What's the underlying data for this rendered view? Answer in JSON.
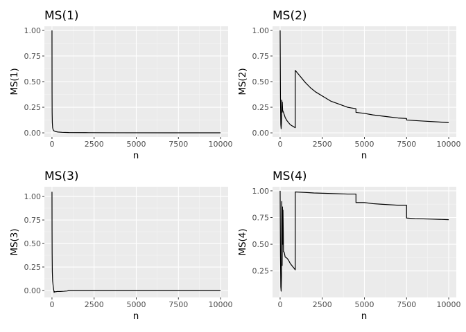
{
  "chart_data": [
    {
      "type": "line",
      "title": "MS(1)",
      "xlabel": "n",
      "ylabel": "MS(1)",
      "xlim": [
        0,
        10000
      ],
      "ylim": [
        0,
        1
      ],
      "x_ticks": [
        0,
        2500,
        5000,
        7500,
        10000
      ],
      "y_ticks": [
        0,
        0.25,
        0.5,
        0.75,
        1
      ],
      "y_tick_labels": [
        "0.00",
        "0.25",
        "0.50",
        "0.75",
        "1.00"
      ],
      "grid": true,
      "series": [
        {
          "x": [
            1,
            2,
            5,
            10,
            20,
            40,
            70,
            120,
            200,
            350,
            600,
            1000,
            2000,
            4000,
            7000,
            10000
          ],
          "y": [
            1.0,
            0.8,
            0.4,
            0.2,
            0.1,
            0.05,
            0.03,
            0.02,
            0.013,
            0.008,
            0.005,
            0.003,
            0.002,
            0.001,
            0.0007,
            0.0005
          ]
        }
      ]
    },
    {
      "type": "line",
      "title": "MS(2)",
      "xlabel": "n",
      "ylabel": "MS(2)",
      "xlim": [
        0,
        10000
      ],
      "ylim": [
        0,
        1
      ],
      "x_ticks": [
        0,
        2500,
        5000,
        7500,
        10000
      ],
      "y_ticks": [
        0,
        0.25,
        0.5,
        0.75,
        1
      ],
      "y_tick_labels": [
        "0.00",
        "0.25",
        "0.50",
        "0.75",
        "1.00"
      ],
      "grid": true,
      "series": [
        {
          "x": [
            1,
            20,
            40,
            60,
            80,
            100,
            120,
            130,
            150,
            200,
            300,
            400,
            500,
            600,
            700,
            800,
            899,
            900,
            1100,
            1300,
            1500,
            1800,
            2100,
            2500,
            3000,
            3500,
            4000,
            4499,
            4500,
            5000,
            5500,
            6000,
            6500,
            7000,
            7499,
            7500,
            8000,
            8500,
            9000,
            9500,
            10000
          ],
          "y": [
            1.0,
            0.35,
            0.08,
            0.04,
            0.1,
            0.32,
            0.2,
            0.3,
            0.22,
            0.2,
            0.15,
            0.12,
            0.1,
            0.08,
            0.07,
            0.06,
            0.05,
            0.61,
            0.57,
            0.53,
            0.49,
            0.44,
            0.4,
            0.36,
            0.31,
            0.28,
            0.25,
            0.235,
            0.2,
            0.19,
            0.175,
            0.165,
            0.155,
            0.145,
            0.14,
            0.125,
            0.12,
            0.115,
            0.11,
            0.105,
            0.1
          ]
        }
      ]
    },
    {
      "type": "line",
      "title": "MS(3)",
      "xlabel": "n",
      "ylabel": "MS(3)",
      "xlim": [
        0,
        10000
      ],
      "ylim": [
        -0.03,
        1.06
      ],
      "x_ticks": [
        0,
        2500,
        5000,
        7500,
        10000
      ],
      "y_ticks": [
        0,
        0.25,
        0.5,
        0.75,
        1
      ],
      "y_tick_labels": [
        "0.00",
        "0.25",
        "0.50",
        "0.75",
        "1.00"
      ],
      "grid": true,
      "series": [
        {
          "x": [
            1,
            5,
            10,
            20,
            40,
            70,
            100,
            130,
            160,
            200,
            300,
            500,
            700,
            900,
            1000,
            2000,
            4000,
            6000,
            8000,
            10000
          ],
          "y": [
            1.05,
            0.65,
            0.4,
            0.2,
            0.1,
            0.05,
            0.01,
            -0.02,
            -0.01,
            -0.015,
            -0.01,
            -0.01,
            -0.008,
            -0.005,
            0.0,
            0.0,
            0.0,
            0.0,
            0.0,
            0.0
          ]
        }
      ]
    },
    {
      "type": "line",
      "title": "MS(4)",
      "xlabel": "n",
      "ylabel": "MS(4)",
      "xlim": [
        0,
        10000
      ],
      "ylim": [
        0.04,
        1.0
      ],
      "x_ticks": [
        0,
        2500,
        5000,
        7500,
        10000
      ],
      "y_ticks": [
        0.25,
        0.5,
        0.75,
        1
      ],
      "y_tick_labels": [
        "0.25",
        "0.50",
        "0.75",
        "1.00"
      ],
      "grid": true,
      "series": [
        {
          "x": [
            1,
            20,
            40,
            60,
            80,
            100,
            120,
            140,
            150,
            170,
            190,
            200,
            220,
            250,
            300,
            400,
            500,
            600,
            700,
            800,
            899,
            900,
            1500,
            2000,
            3000,
            4000,
            4499,
            4500,
            5000,
            5500,
            6000,
            6500,
            7000,
            7499,
            7500,
            8000,
            9000,
            10000
          ],
          "y": [
            1.0,
            0.4,
            0.1,
            0.06,
            0.2,
            0.9,
            0.3,
            0.85,
            0.5,
            0.82,
            0.6,
            0.43,
            0.43,
            0.42,
            0.38,
            0.37,
            0.35,
            0.32,
            0.3,
            0.28,
            0.26,
            0.99,
            0.985,
            0.98,
            0.975,
            0.97,
            0.97,
            0.89,
            0.89,
            0.88,
            0.875,
            0.87,
            0.865,
            0.865,
            0.745,
            0.74,
            0.735,
            0.73
          ]
        }
      ]
    }
  ]
}
